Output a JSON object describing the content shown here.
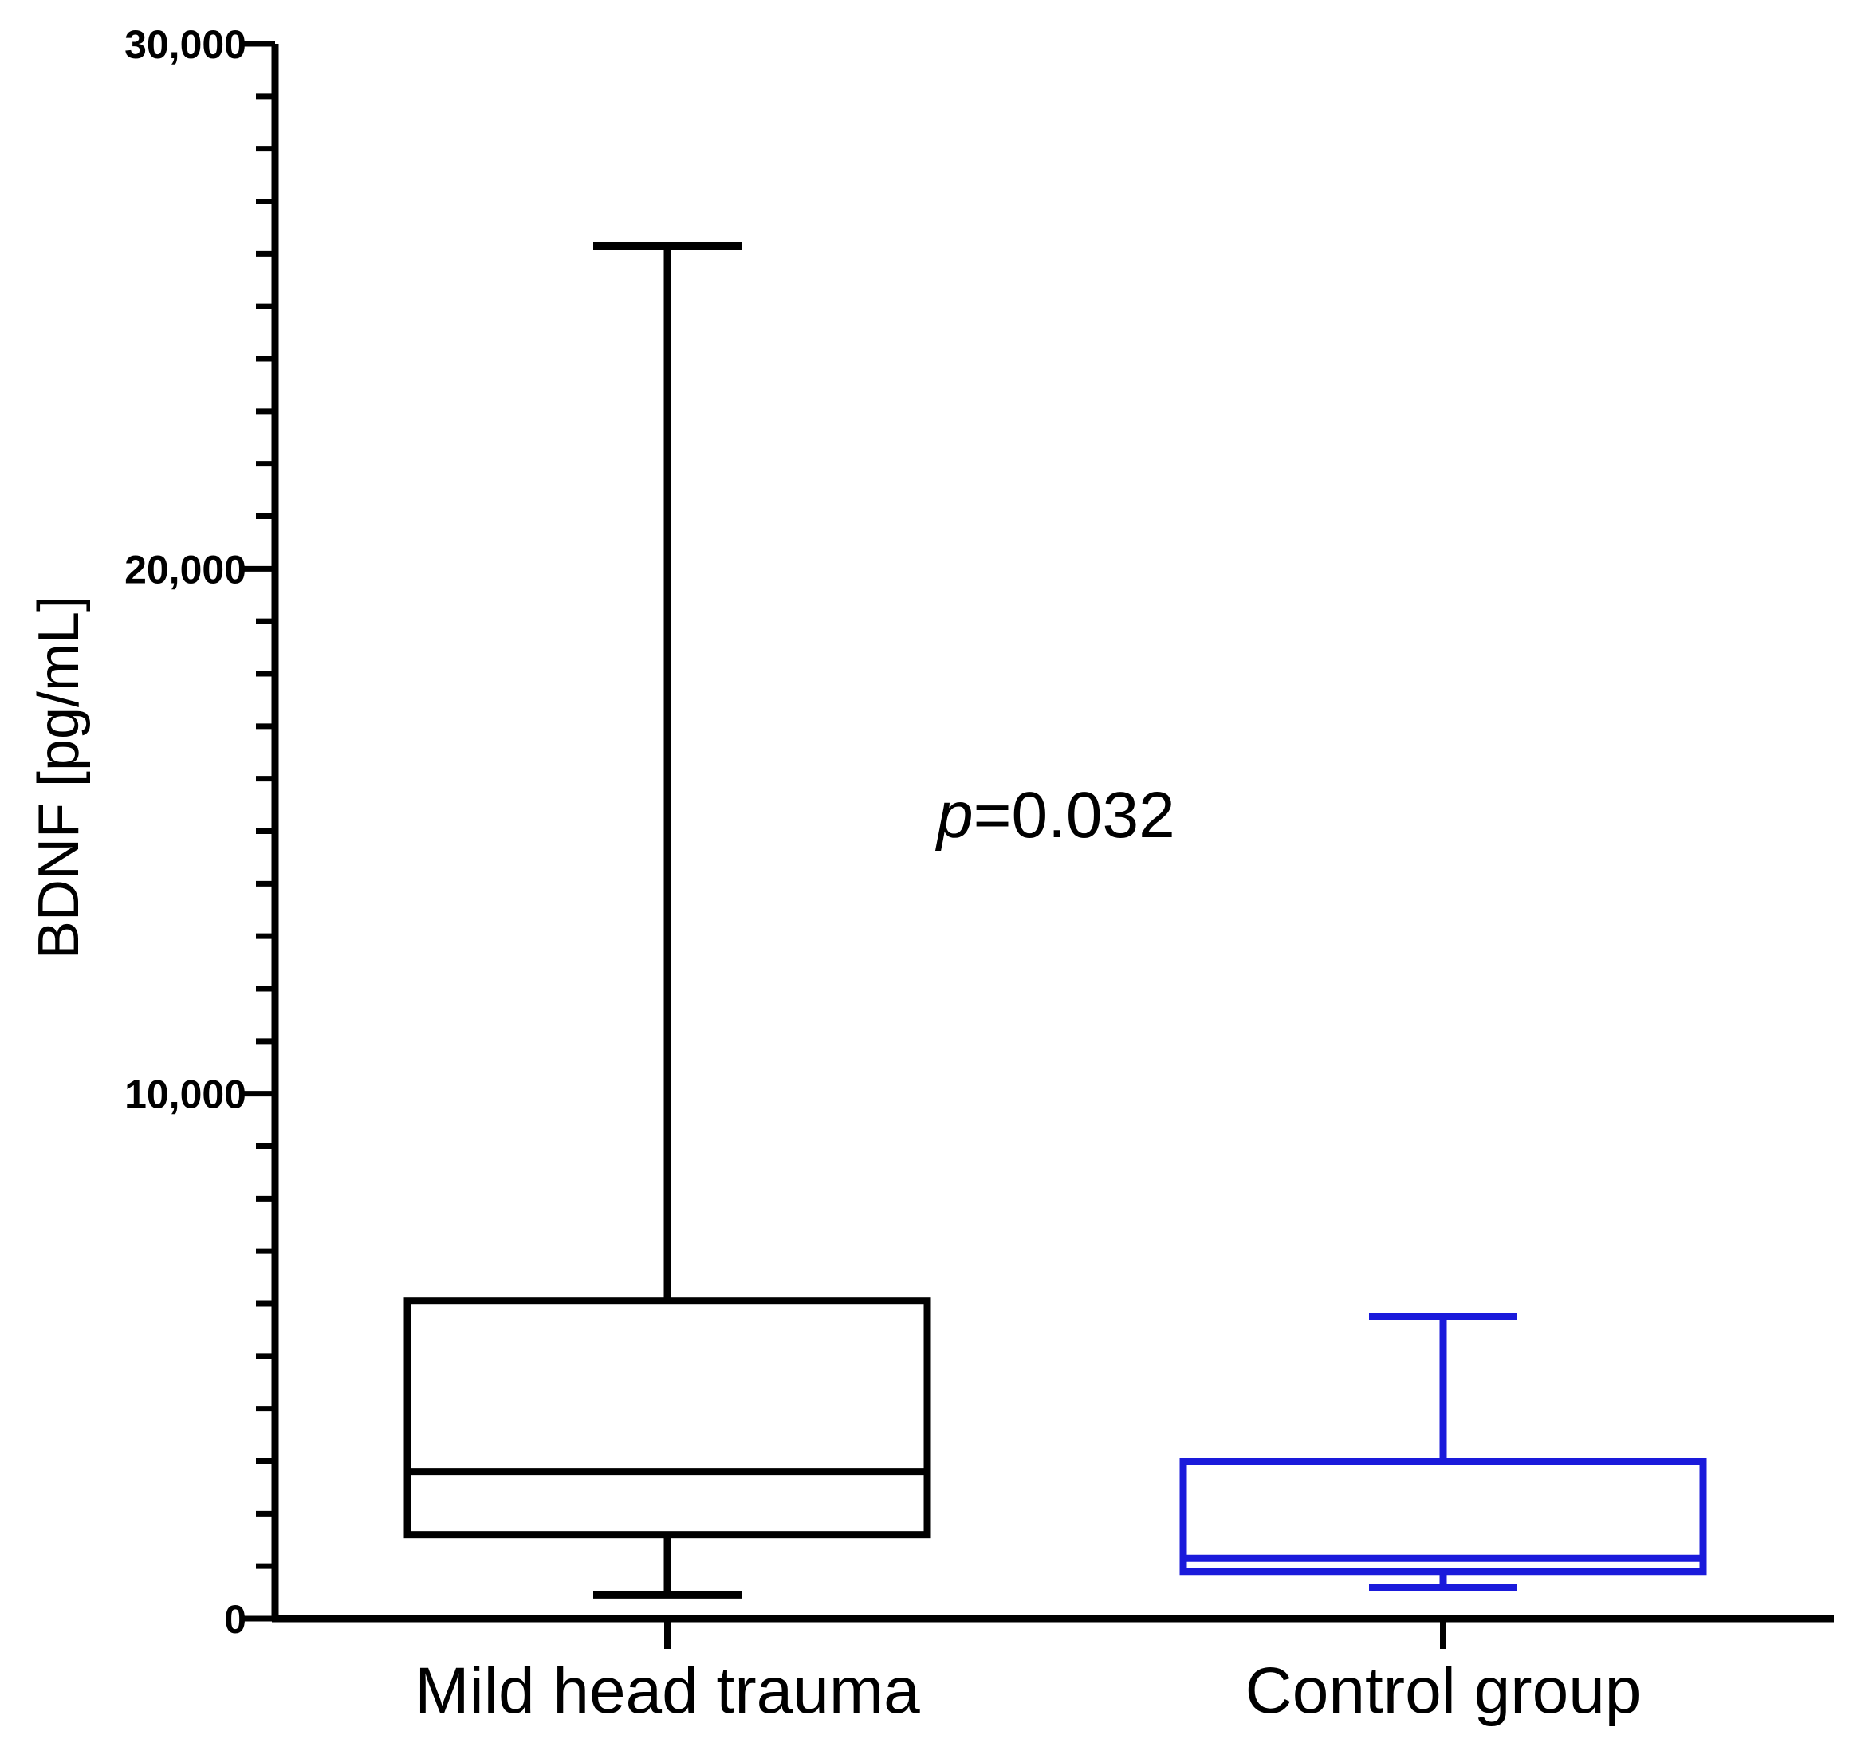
{
  "chart_data": {
    "type": "box",
    "title": "",
    "xlabel": "",
    "ylabel": "BDNF [pg/mL]",
    "ylim": [
      0,
      30000
    ],
    "yticks": [
      0,
      10000,
      20000,
      30000
    ],
    "ytick_labels": [
      "0",
      "10,000",
      "20,000",
      "30,000"
    ],
    "minor_tick_step": 1000,
    "grid": false,
    "categories": [
      "Mild head trauma",
      "Control group"
    ],
    "series": [
      {
        "name": "Mild head trauma",
        "color": "#000000",
        "min": 450,
        "q1": 1600,
        "median": 2800,
        "q3": 6050,
        "max": 26150
      },
      {
        "name": "Control group",
        "color": "#1a1adb",
        "min": 600,
        "q1": 900,
        "median": 1150,
        "q3": 3000,
        "max": 5750
      }
    ],
    "annotation": {
      "italic": "p",
      "text": "=0.032"
    }
  }
}
